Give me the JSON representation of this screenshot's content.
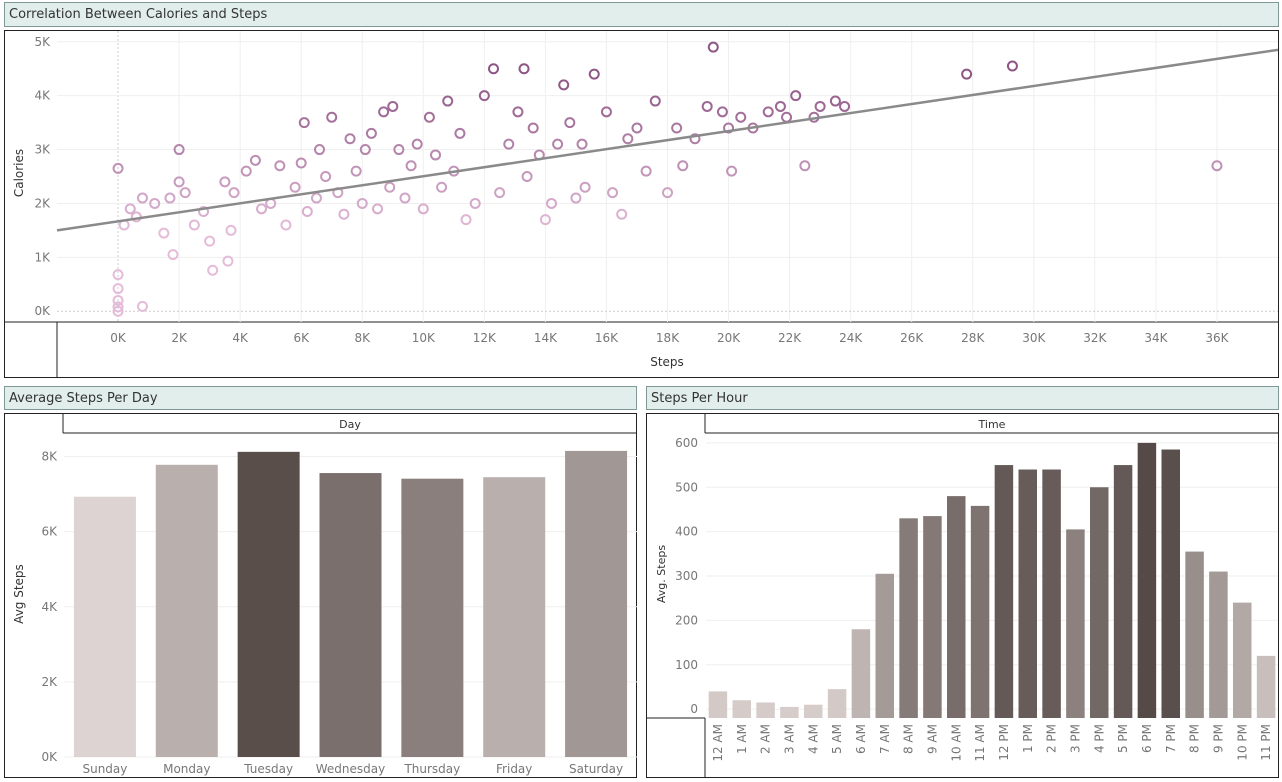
{
  "scatter": {
    "title": "Correlation Between Calories and Steps",
    "xlabel": "Steps",
    "ylabel": "Calories",
    "x_ticks": [
      "0K",
      "2K",
      "4K",
      "6K",
      "8K",
      "10K",
      "12K",
      "14K",
      "16K",
      "18K",
      "20K",
      "22K",
      "24K",
      "26K",
      "28K",
      "30K",
      "32K",
      "34K",
      "36K"
    ],
    "y_ticks": [
      "0K",
      "1K",
      "2K",
      "3K",
      "4K",
      "5K"
    ],
    "colors": {
      "low": "#e4bcd9",
      "high": "#8d5684",
      "trend": "#8a8a8a"
    }
  },
  "daily": {
    "title": "Average Steps Per Day",
    "header": "Day",
    "ylabel": "Avg Steps",
    "y_ticks": [
      "0K",
      "2K",
      "4K",
      "6K",
      "8K"
    ]
  },
  "hourly": {
    "title": "Steps Per Hour",
    "header": "Time",
    "ylabel": "Avg. Steps",
    "y_ticks": [
      "0",
      "100",
      "200",
      "300",
      "400",
      "500",
      "600"
    ]
  },
  "chart_data": [
    {
      "type": "scatter",
      "title": "Correlation Between Calories and Steps",
      "xlabel": "Steps",
      "ylabel": "Calories",
      "xlim": [
        -2000,
        38000
      ],
      "ylim": [
        -200,
        5200
      ],
      "trendline": {
        "x": [
          -2000,
          38000
        ],
        "y": [
          1500,
          4850
        ]
      },
      "series": [
        {
          "values": [
            [
              0,
              0
            ],
            [
              0,
              80
            ],
            [
              0,
              200
            ],
            [
              0,
              420
            ],
            [
              0,
              680
            ],
            [
              800,
              90
            ],
            [
              0,
              2650
            ],
            [
              200,
              1600
            ],
            [
              400,
              1900
            ],
            [
              600,
              1750
            ],
            [
              800,
              2100
            ],
            [
              1200,
              2000
            ],
            [
              1500,
              1450
            ],
            [
              1800,
              1050
            ],
            [
              1700,
              2100
            ],
            [
              2000,
              2400
            ],
            [
              2000,
              3000
            ],
            [
              2200,
              2200
            ],
            [
              2500,
              1600
            ],
            [
              2800,
              1850
            ],
            [
              3000,
              1300
            ],
            [
              3100,
              760
            ],
            [
              3500,
              2400
            ],
            [
              3600,
              930
            ],
            [
              3700,
              1500
            ],
            [
              3800,
              2200
            ],
            [
              4200,
              2600
            ],
            [
              4500,
              2800
            ],
            [
              4700,
              1900
            ],
            [
              5000,
              2000
            ],
            [
              5300,
              2700
            ],
            [
              5500,
              1600
            ],
            [
              5800,
              2300
            ],
            [
              6000,
              2750
            ],
            [
              6100,
              3500
            ],
            [
              6200,
              1850
            ],
            [
              6500,
              2100
            ],
            [
              6600,
              3000
            ],
            [
              6800,
              2500
            ],
            [
              7000,
              3600
            ],
            [
              7200,
              2200
            ],
            [
              7400,
              1800
            ],
            [
              7600,
              3200
            ],
            [
              7800,
              2600
            ],
            [
              8000,
              2000
            ],
            [
              8100,
              3000
            ],
            [
              8300,
              3300
            ],
            [
              8500,
              1900
            ],
            [
              8700,
              3700
            ],
            [
              8900,
              2300
            ],
            [
              9000,
              3800
            ],
            [
              9200,
              3000
            ],
            [
              9400,
              2100
            ],
            [
              9600,
              2700
            ],
            [
              9800,
              3100
            ],
            [
              10000,
              1900
            ],
            [
              10200,
              3600
            ],
            [
              10400,
              2900
            ],
            [
              10600,
              2300
            ],
            [
              10800,
              3900
            ],
            [
              11000,
              2600
            ],
            [
              11200,
              3300
            ],
            [
              11400,
              1700
            ],
            [
              11700,
              2000
            ],
            [
              12000,
              4000
            ],
            [
              12300,
              4500
            ],
            [
              12500,
              2200
            ],
            [
              12800,
              3100
            ],
            [
              13100,
              3700
            ],
            [
              13300,
              4500
            ],
            [
              13400,
              2500
            ],
            [
              13600,
              3400
            ],
            [
              13800,
              2900
            ],
            [
              14000,
              1700
            ],
            [
              14200,
              2000
            ],
            [
              14400,
              3100
            ],
            [
              14600,
              4200
            ],
            [
              14800,
              3500
            ],
            [
              15000,
              2100
            ],
            [
              15200,
              3100
            ],
            [
              15300,
              2300
            ],
            [
              15600,
              4400
            ],
            [
              16000,
              3700
            ],
            [
              16200,
              2200
            ],
            [
              16500,
              1800
            ],
            [
              16700,
              3200
            ],
            [
              17000,
              3400
            ],
            [
              17300,
              2600
            ],
            [
              17600,
              3900
            ],
            [
              18000,
              2200
            ],
            [
              18300,
              3400
            ],
            [
              18500,
              2700
            ],
            [
              18900,
              3200
            ],
            [
              19300,
              3800
            ],
            [
              19500,
              4900
            ],
            [
              19800,
              3700
            ],
            [
              20000,
              3400
            ],
            [
              20100,
              2600
            ],
            [
              20400,
              3600
            ],
            [
              20800,
              3400
            ],
            [
              21300,
              3700
            ],
            [
              21700,
              3800
            ],
            [
              21900,
              3600
            ],
            [
              22200,
              4000
            ],
            [
              22500,
              2700
            ],
            [
              22800,
              3600
            ],
            [
              23000,
              3800
            ],
            [
              23500,
              3900
            ],
            [
              23800,
              3800
            ],
            [
              27800,
              4400
            ],
            [
              29300,
              4550
            ],
            [
              36000,
              2700
            ]
          ]
        }
      ]
    },
    {
      "type": "bar",
      "title": "Average Steps Per Day",
      "xlabel": "Day",
      "ylabel": "Avg Steps",
      "ylim": [
        0,
        8600
      ],
      "categories": [
        "Sunday",
        "Monday",
        "Tuesday",
        "Wednesday",
        "Thursday",
        "Friday",
        "Saturday"
      ],
      "values": [
        6930,
        7780,
        8125,
        7560,
        7410,
        7450,
        8150
      ],
      "colors": [
        "#dcd3d2",
        "#b9afac",
        "#5a4e4b",
        "#7a6f6c",
        "#8a7f7c",
        "#b9afac",
        "#a19794"
      ]
    },
    {
      "type": "bar",
      "title": "Steps Per Hour",
      "xlabel": "Time",
      "ylabel": "Avg. Steps",
      "ylim": [
        -20,
        620
      ],
      "categories": [
        "12 AM",
        "1 AM",
        "2 AM",
        "3 AM",
        "4 AM",
        "5 AM",
        "6 AM",
        "7 AM",
        "8 AM",
        "9 AM",
        "10 AM",
        "11 AM",
        "12 PM",
        "1 PM",
        "2 PM",
        "3 PM",
        "4 PM",
        "5 PM",
        "6 PM",
        "7 PM",
        "8 PM",
        "9 PM",
        "10 PM",
        "11 PM"
      ],
      "values": [
        40,
        20,
        15,
        5,
        10,
        45,
        180,
        305,
        430,
        435,
        480,
        458,
        550,
        540,
        540,
        405,
        500,
        550,
        600,
        585,
        355,
        310,
        240,
        120
      ]
    }
  ]
}
